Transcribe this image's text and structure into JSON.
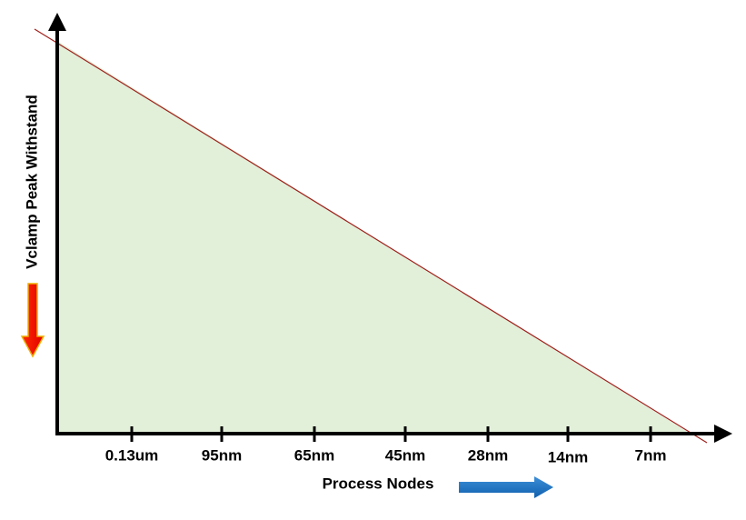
{
  "y_axis": {
    "label": "Vclamp Peak Withstand"
  },
  "x_axis": {
    "label": "Process Nodes",
    "categories": [
      "0.13um",
      "95nm",
      "65nm",
      "45nm",
      "28nm",
      "14nm",
      "7nm"
    ]
  }
}
